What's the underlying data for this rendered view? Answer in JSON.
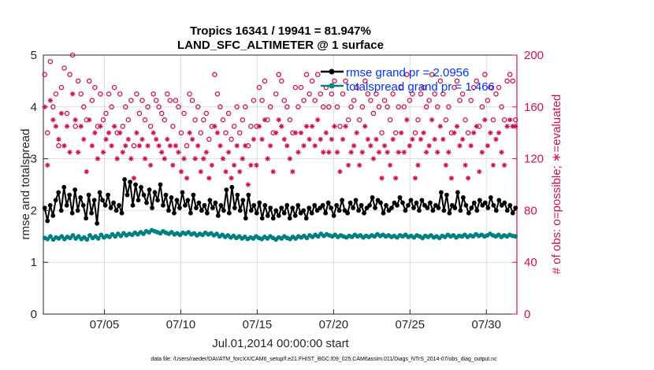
{
  "chart_data": {
    "type": "line",
    "title_line1": "Tropics 16341 / 19941 = 81.947%",
    "title_line2": "LAND_SFC_ALTIMETER @ 1 surface",
    "xlabel": "Jul.01,2014 00:00:00 start",
    "ylabel_left": "rmse and totalspread",
    "ylabel_right": "# of obs: o=possible; ∗=evaluated",
    "x_tick_labels": [
      "07/05",
      "07/10",
      "07/15",
      "07/20",
      "07/25",
      "07/30"
    ],
    "x_tick_days": [
      5,
      10,
      15,
      20,
      25,
      30
    ],
    "xlim": [
      1,
      32
    ],
    "y_left_ticks": [
      "0",
      "1",
      "2",
      "3",
      "4",
      "5"
    ],
    "ylim_left": [
      0,
      5
    ],
    "y_right_ticks": [
      "0",
      "40",
      "80",
      "120",
      "160",
      "200"
    ],
    "ylim_right": [
      0,
      200
    ],
    "footnote": "data file: /Users/raeder/DAI/ATM_forcXX/CAM6_setup/f.e21.FHIST_BGC.f09_025.CAM6assim.011/Diags_NTrS_2014-07/obs_diag_output.nc",
    "series": [
      {
        "name": "rmse grand pr = 2.0956",
        "color": "#000000",
        "marker": "circle",
        "axis": "left",
        "values": [
          2.05,
          1.8,
          2.1,
          1.9,
          2.2,
          2.35,
          2.0,
          2.45,
          2.1,
          2.3,
          1.95,
          2.4,
          2.0,
          2.25,
          2.1,
          1.85,
          2.3,
          1.95,
          2.2,
          1.75,
          2.35,
          2.2,
          2.1,
          2.3,
          2.05,
          2.15,
          2.0,
          2.1,
          1.95,
          2.6,
          2.3,
          2.55,
          2.1,
          2.5,
          2.2,
          2.45,
          2.3,
          2.15,
          2.4,
          2.05,
          2.35,
          2.2,
          2.5,
          2.1,
          2.3,
          2.0,
          2.25,
          1.95,
          2.2,
          2.05,
          2.35,
          2.1,
          2.2,
          1.95,
          2.3,
          2.05,
          2.15,
          2.0,
          2.1,
          1.95,
          2.2,
          2.05,
          2.15,
          1.9,
          2.1,
          2.0,
          2.4,
          1.95,
          2.45,
          2.05,
          2.3,
          2.0,
          2.2,
          1.85,
          2.3,
          2.0,
          2.1,
          1.95,
          2.15,
          1.85,
          2.1,
          1.9,
          2.05,
          1.85,
          2.0,
          1.9,
          2.05,
          1.95,
          2.1,
          1.85,
          2.05,
          1.9,
          2.1,
          1.95,
          2.0,
          1.85,
          2.05,
          1.95,
          2.1,
          2.0,
          2.05,
          2.1,
          1.95,
          2.15,
          2.05,
          1.9,
          2.1,
          2.0,
          2.2,
          2.0,
          1.95,
          2.15,
          2.05,
          2.2,
          2.0,
          2.1,
          1.95,
          2.05,
          2.1,
          2.25,
          2.05,
          2.2,
          2.15,
          1.95,
          2.1,
          2.0,
          2.05,
          2.15,
          2.1,
          2.25,
          2.15,
          2.0,
          2.1,
          2.2,
          2.05,
          2.15,
          2.0,
          2.2,
          2.1,
          2.05,
          2.15,
          2.0,
          2.1,
          2.05,
          2.35,
          2.0,
          2.3,
          1.95,
          2.1,
          2.05,
          2.35,
          2.0,
          2.25,
          2.1,
          1.95,
          2.05,
          2.15,
          2.0,
          2.2,
          2.1,
          2.15,
          2.05,
          2.25,
          2.1,
          2.0,
          2.2,
          2.1,
          2.15,
          2.0,
          2.1,
          1.95,
          2.05
        ]
      },
      {
        "name": "totalspread grand pr = 1.466",
        "color": "#008080",
        "marker": "circle",
        "axis": "left",
        "values": [
          1.47,
          1.45,
          1.5,
          1.44,
          1.48,
          1.46,
          1.5,
          1.45,
          1.49,
          1.47,
          1.52,
          1.46,
          1.5,
          1.45,
          1.48,
          1.44,
          1.52,
          1.47,
          1.5,
          1.46,
          1.53,
          1.48,
          1.51,
          1.49,
          1.54,
          1.5,
          1.55,
          1.51,
          1.56,
          1.52,
          1.55,
          1.53,
          1.57,
          1.54,
          1.58,
          1.55,
          1.6,
          1.58,
          1.62,
          1.6,
          1.58,
          1.56,
          1.6,
          1.57,
          1.55,
          1.58,
          1.54,
          1.56,
          1.53,
          1.57,
          1.55,
          1.58,
          1.54,
          1.56,
          1.52,
          1.55,
          1.53,
          1.57,
          1.54,
          1.56,
          1.52,
          1.55,
          1.5,
          1.53,
          1.49,
          1.52,
          1.48,
          1.51,
          1.47,
          1.5,
          1.46,
          1.49,
          1.45,
          1.48,
          1.46,
          1.5,
          1.47,
          1.45,
          1.49,
          1.46,
          1.5,
          1.47,
          1.44,
          1.48,
          1.46,
          1.5,
          1.47,
          1.45,
          1.49,
          1.46,
          1.5,
          1.48,
          1.51,
          1.47,
          1.52,
          1.49,
          1.53,
          1.5,
          1.55,
          1.51,
          1.54,
          1.52,
          1.5,
          1.53,
          1.49,
          1.52,
          1.5,
          1.48,
          1.51,
          1.49,
          1.53,
          1.5,
          1.52,
          1.48,
          1.51,
          1.49,
          1.52,
          1.5,
          1.54,
          1.51,
          1.53,
          1.5,
          1.52,
          1.49,
          1.51,
          1.48,
          1.52,
          1.5,
          1.53,
          1.49,
          1.51,
          1.48,
          1.52,
          1.5,
          1.47,
          1.51,
          1.49,
          1.52,
          1.48,
          1.5,
          1.47,
          1.51,
          1.49,
          1.53,
          1.5,
          1.52,
          1.48,
          1.51,
          1.5,
          1.53,
          1.49,
          1.52,
          1.5,
          1.54,
          1.51,
          1.53,
          1.5,
          1.52,
          1.55,
          1.52,
          1.5,
          1.53,
          1.49,
          1.52,
          1.5,
          1.53,
          1.51,
          1.5
        ]
      },
      {
        "name": "possible",
        "color": "#d0104f",
        "marker": "o",
        "axis": "right",
        "values": [
          185,
          140,
          195,
          160,
          170,
          130,
          175,
          190,
          155,
          185,
          200,
          145,
          180,
          170,
          160,
          150,
          180,
          165,
          175,
          145,
          170,
          150,
          155,
          170,
          160,
          175,
          140,
          170,
          145,
          160,
          150,
          165,
          130,
          170,
          155,
          165,
          150,
          160,
          145,
          170,
          165,
          160,
          155,
          150,
          170,
          165,
          145,
          165,
          160,
          140,
          155,
          130,
          170,
          165,
          150,
          160,
          140,
          150,
          155,
          135,
          145,
          185,
          170,
          160,
          150,
          140,
          155,
          135,
          145,
          160,
          140,
          150,
          160,
          130,
          145,
          165,
          145,
          175,
          165,
          180,
          150,
          160,
          140,
          170,
          185,
          180,
          165,
          160,
          150,
          140,
          175,
          160,
          175,
          165,
          185,
          170,
          180,
          165,
          185,
          170,
          160,
          175,
          160,
          170,
          180,
          160,
          145,
          170,
          180,
          150,
          160,
          165,
          175,
          150,
          160,
          180,
          170,
          165,
          155,
          170,
          160,
          140,
          165,
          160,
          150,
          170,
          140,
          160,
          175,
          160,
          185,
          165,
          170,
          140,
          150,
          170,
          175,
          160,
          165,
          185,
          170,
          160,
          180,
          170,
          150,
          160,
          140,
          175,
          180,
          165,
          170,
          150,
          140,
          165,
          175,
          180,
          145,
          160,
          185,
          165,
          175,
          150,
          170,
          175,
          160,
          150,
          180,
          185,
          180,
          150
        ]
      },
      {
        "name": "evaluated",
        "color": "#d0104f",
        "marker": "asterisk",
        "axis": "right",
        "values": [
          160,
          115,
          165,
          150,
          145,
          135,
          155,
          130,
          145,
          125,
          170,
          150,
          125,
          145,
          135,
          110,
          150,
          130,
          140,
          120,
          145,
          125,
          135,
          140,
          130,
          145,
          120,
          140,
          125,
          130,
          135,
          120,
          105,
          140,
          130,
          135,
          120,
          130,
          115,
          140,
          135,
          130,
          125,
          120,
          135,
          130,
          115,
          130,
          125,
          110,
          120,
          105,
          140,
          135,
          120,
          130,
          110,
          120,
          125,
          105,
          115,
          145,
          140,
          130,
          120,
          110,
          125,
          105,
          115,
          130,
          110,
          120,
          130,
          100,
          115,
          135,
          115,
          145,
          135,
          150,
          120,
          130,
          110,
          140,
          150,
          145,
          135,
          130,
          120,
          110,
          140,
          125,
          140,
          130,
          145,
          135,
          145,
          130,
          150,
          135,
          125,
          140,
          125,
          135,
          145,
          125,
          110,
          135,
          145,
          115,
          125,
          130,
          140,
          115,
          125,
          145,
          135,
          130,
          120,
          135,
          125,
          105,
          130,
          125,
          115,
          135,
          105,
          125,
          140,
          125,
          150,
          130,
          135,
          105,
          115,
          135,
          140,
          125,
          130,
          150,
          135,
          125,
          145,
          135,
          115,
          125,
          105,
          140,
          145,
          130,
          135,
          115,
          105,
          130,
          140,
          145,
          110,
          125,
          150,
          130,
          140,
          115,
          135,
          140,
          125,
          115,
          145,
          150,
          145,
          145
        ]
      }
    ]
  }
}
